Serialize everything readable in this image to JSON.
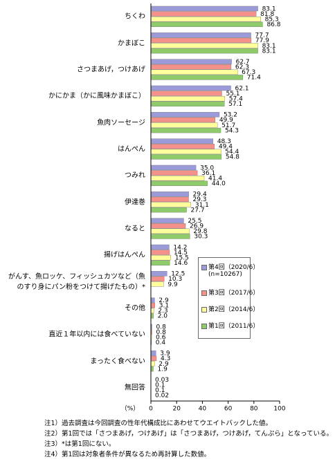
{
  "chart_data": {
    "type": "bar",
    "orientation": "horizontal",
    "categories": [
      "ちくわ",
      "かまぼこ",
      "さつまあげ，つけあげ",
      "かにかま（かに風味かまぼこ）",
      "魚肉ソーセージ",
      "はんぺん",
      "つみれ",
      "伊達巻",
      "なると",
      "揚げはんぺん",
      "がんす、魚ロッケ、フィッシュカツなど（魚のすり身にパン粉をつけて揚げたもの）*",
      "その他",
      "直近１年以内には食べていない",
      "まったく食べない",
      "無回答"
    ],
    "series": [
      {
        "name": "第4回（2020/6）",
        "sample_size": "(n=10267)",
        "color": "#9b9bd9",
        "values": [
          83.1,
          77.7,
          62.7,
          62.1,
          53.2,
          48.3,
          35.0,
          29.4,
          25.5,
          14.2,
          12.5,
          2.9,
          0.8,
          3.9,
          0.03
        ],
        "value_labels": [
          "83.1",
          "77.7",
          "62.7",
          "62.1",
          "53.2",
          "48.3",
          "35.0",
          "29.4",
          "25.5",
          "14.2",
          "12.5",
          "2.9",
          "0.8",
          "3.9",
          "0.03"
        ]
      },
      {
        "name": "第3回（2017/6）",
        "color": "#f4918a",
        "values": [
          81.8,
          77.9,
          62.3,
          55.1,
          49.9,
          49.4,
          36.1,
          29.3,
          26.9,
          14.5,
          10.3,
          3.1,
          0.8,
          4.3,
          0.1
        ],
        "value_labels": [
          "81.8",
          "77.9",
          "62.3",
          "55.1",
          "49.9",
          "49.4",
          "36.1",
          "29.3",
          "26.9",
          "14.5",
          "10.3",
          "3.1",
          "0.8",
          "4.3",
          "0.1"
        ]
      },
      {
        "name": "第2回（2014/6）",
        "color": "#ffff9c",
        "values": [
          85.3,
          83.1,
          67.3,
          57.4,
          51.7,
          54.4,
          41.4,
          31.1,
          29.8,
          15.5,
          9.9,
          2.3,
          0.6,
          2.9,
          0.1
        ],
        "value_labels": [
          "85.3",
          "83.1",
          "67.3",
          "57.4",
          "51.7",
          "54.4",
          "41.4",
          "31.1",
          "29.8",
          "15.5",
          "9.9",
          "2.3",
          "0.6",
          "2.9",
          "0.1"
        ]
      },
      {
        "name": "第1回（2011/6）",
        "color": "#8fcb6b",
        "values": [
          86.8,
          83.1,
          71.4,
          57.1,
          54.3,
          54.8,
          44.0,
          27.7,
          30.3,
          14.6,
          null,
          2.0,
          0.4,
          1.9,
          0.02
        ],
        "value_labels": [
          "86.8",
          "83.1",
          "71.4",
          "57.1",
          "54.3",
          "54.8",
          "44.0",
          "27.7",
          "30.3",
          "14.6",
          null,
          "2.0",
          "0.4",
          "1.9",
          "0.02"
        ]
      }
    ],
    "x_unit": "（%）",
    "xlim": [
      0,
      100
    ],
    "xticks": [
      0,
      20,
      40,
      60,
      80,
      100
    ],
    "legend_position": "right",
    "notes": [
      "注1）過去調査は今回調査の性年代構成比にあわせてウエイトバックした値。",
      "注2）第1回では「さつまあげ，つけあげ」は「さつまあげ，つけあげ，てんぷら」となっている。",
      "注3）*は第1回にない。",
      "注4）第1回は対象者条件が異なるため再計算した数値。"
    ]
  }
}
